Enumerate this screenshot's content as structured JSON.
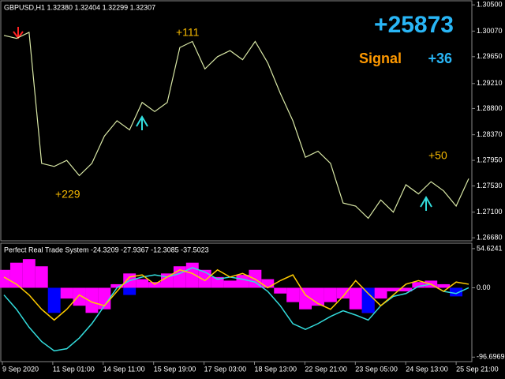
{
  "chart_data": [
    {
      "type": "line",
      "title": "GBPUSD,H1  1.32380 1.32404 1.32299 1.32307",
      "annotations": [
        "+25873",
        "Signal",
        "+36",
        "+111",
        "+229",
        "+50"
      ],
      "values": [
        1.3,
        1.2995,
        1.3005,
        1.279,
        1.2785,
        1.2795,
        1.277,
        1.279,
        1.2835,
        1.286,
        1.2845,
        1.289,
        1.2875,
        1.289,
        1.298,
        1.299,
        1.2945,
        1.2965,
        1.2975,
        1.296,
        1.299,
        1.2955,
        1.2905,
        1.286,
        1.28,
        1.281,
        1.279,
        1.2725,
        1.272,
        1.27,
        1.273,
        1.271,
        1.2755,
        1.274,
        1.276,
        1.2745,
        1.272,
        1.2765
      ],
      "color": "#d9e8a6",
      "ylim": [
        1.2663,
        1.3058
      ],
      "yticks": [
        {
          "value": 1.305,
          "label": "1.30500"
        },
        {
          "value": 1.3007,
          "label": "1.30070"
        },
        {
          "value": 1.2965,
          "label": "1.29650"
        },
        {
          "value": 1.2921,
          "label": "1.29210"
        },
        {
          "value": 1.288,
          "label": "1.28800"
        },
        {
          "value": 1.2837,
          "label": "1.28370"
        },
        {
          "value": 1.2795,
          "label": "1.27950"
        },
        {
          "value": 1.2753,
          "label": "1.27530"
        },
        {
          "value": 1.271,
          "label": "1.27100"
        },
        {
          "value": 1.2668,
          "label": "1.26680"
        }
      ]
    },
    {
      "type": "indicator",
      "title": "Perfect Real Trade System -24.3209 -27.9367 -12.3085 -37.5023",
      "series": [
        {
          "kind": "bar",
          "color": "#ff00ff",
          "values": [
            25,
            35,
            40,
            30,
            null,
            -15,
            -25,
            -35,
            -30,
            5,
            20,
            12,
            8,
            20,
            30,
            35,
            25,
            15,
            10,
            18,
            25,
            12,
            -8,
            -20,
            -30,
            -25,
            -20,
            -15,
            -30,
            -35,
            -15,
            -5,
            -5,
            8,
            10,
            5,
            -5,
            null
          ]
        },
        {
          "kind": "bar",
          "color": "#0000ff",
          "values": [
            null,
            null,
            null,
            null,
            -35,
            null,
            null,
            null,
            null,
            null,
            -10,
            null,
            null,
            null,
            null,
            null,
            null,
            null,
            null,
            null,
            null,
            null,
            null,
            null,
            null,
            null,
            null,
            null,
            null,
            -35,
            null,
            null,
            null,
            null,
            null,
            null,
            -12,
            null
          ]
        },
        {
          "kind": "line",
          "color": "#33dddd",
          "values": [
            -10,
            -30,
            -55,
            -75,
            -88,
            -85,
            -70,
            -50,
            -25,
            0,
            10,
            15,
            18,
            15,
            20,
            28,
            22,
            12,
            15,
            12,
            8,
            -5,
            -25,
            -50,
            -58,
            -50,
            -40,
            -32,
            -38,
            -45,
            -25,
            -12,
            -8,
            2,
            5,
            -5,
            -8,
            0
          ]
        },
        {
          "kind": "line",
          "color": "#ffcc00",
          "values": [
            15,
            5,
            -10,
            -30,
            -45,
            -30,
            -10,
            -20,
            -25,
            -5,
            15,
            18,
            5,
            15,
            25,
            20,
            10,
            25,
            15,
            20,
            12,
            0,
            10,
            18,
            -10,
            -22,
            -30,
            -12,
            10,
            -8,
            -25,
            -10,
            5,
            10,
            5,
            -5,
            8,
            5
          ]
        }
      ],
      "ylim": [
        -103,
        60
      ],
      "yticks": [
        54.6241,
        {
          "value": 0,
          "label": "0.00"
        },
        -96.6969
      ],
      "xlabels": [
        "9 Sep 2020",
        "11 Sep 01:00",
        "14 Sep 11:00",
        "15 Sep 19:00",
        "17 Sep 03:00",
        "18 Sep 13:00",
        "22 Sep 21:00",
        "23 Sep 05:00",
        "24 Sep 13:00",
        "25 Sep 21:00"
      ]
    }
  ]
}
